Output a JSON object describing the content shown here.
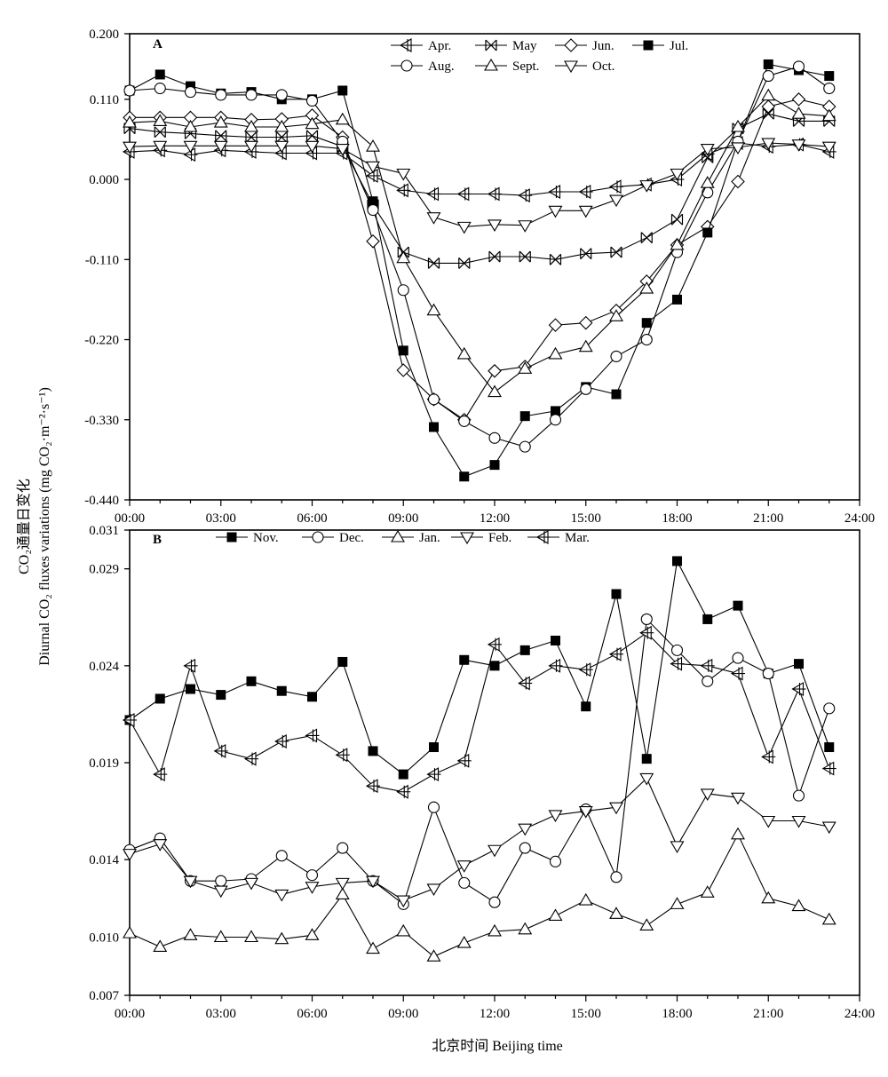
{
  "figure": {
    "ylabel_line1": "CO₂通量日变化",
    "ylabel_line2": "Diurnal CO₂ fluxes variations (mg CO₂·m⁻²·s⁻¹)",
    "xlabel": "北京时间 Beijing time"
  },
  "chart_data": [
    {
      "type": "line",
      "panel": "A",
      "x_unit": "hour",
      "x": [
        0,
        1,
        2,
        3,
        4,
        5,
        6,
        7,
        8,
        9,
        10,
        11,
        12,
        13,
        14,
        15,
        16,
        17,
        18,
        19,
        20,
        21,
        22,
        23
      ],
      "xlim": [
        0,
        24
      ],
      "xticks": [
        "00:00",
        "03:00",
        "06:00",
        "09:00",
        "12:00",
        "15:00",
        "18:00",
        "21:00",
        "24:00"
      ],
      "ylim": [
        -0.44,
        0.2
      ],
      "yticks": [
        "-0.440",
        "-0.330",
        "-0.220",
        "-0.110",
        "0.000",
        "0.110",
        "0.200"
      ],
      "ytick_values": [
        -0.44,
        -0.33,
        -0.22,
        -0.11,
        0,
        0.11,
        0.2
      ],
      "grid": false,
      "legend_position": "top-right",
      "series": [
        {
          "name": "Apr.",
          "marker": "tri-left-cross",
          "values": [
            0.038,
            0.04,
            0.034,
            0.04,
            0.038,
            0.036,
            0.036,
            0.036,
            0.005,
            -0.015,
            -0.02,
            -0.02,
            -0.02,
            -0.022,
            -0.017,
            -0.017,
            -0.01,
            -0.007,
            0.0,
            0.035,
            0.05,
            0.045,
            0.048,
            0.038
          ]
        },
        {
          "name": "May",
          "marker": "x-box",
          "values": [
            0.07,
            0.065,
            0.063,
            0.06,
            0.058,
            0.058,
            0.06,
            0.045,
            -0.035,
            -0.1,
            -0.115,
            -0.115,
            -0.106,
            -0.106,
            -0.11,
            -0.102,
            -0.1,
            -0.08,
            -0.055,
            0.03,
            0.07,
            0.09,
            0.08,
            0.08
          ]
        },
        {
          "name": "Jun.",
          "marker": "diamond",
          "values": [
            0.085,
            0.085,
            0.085,
            0.085,
            0.082,
            0.083,
            0.088,
            0.058,
            -0.085,
            -0.262,
            -0.302,
            -0.33,
            -0.263,
            -0.257,
            -0.2,
            -0.197,
            -0.18,
            -0.14,
            -0.09,
            -0.065,
            -0.003,
            0.1,
            0.11,
            0.1
          ]
        },
        {
          "name": "Jul.",
          "marker": "filled-square",
          "values": [
            0.122,
            0.144,
            0.128,
            0.118,
            0.12,
            0.11,
            0.11,
            0.122,
            -0.03,
            -0.235,
            -0.34,
            -0.408,
            -0.392,
            -0.325,
            -0.318,
            -0.285,
            -0.295,
            -0.197,
            -0.165,
            -0.073,
            0.052,
            0.158,
            0.15,
            0.142
          ]
        },
        {
          "name": "Aug.",
          "marker": "circle",
          "values": [
            0.122,
            0.125,
            0.12,
            0.116,
            0.116,
            0.116,
            0.108,
            0.052,
            -0.042,
            -0.152,
            -0.302,
            -0.332,
            -0.355,
            -0.367,
            -0.33,
            -0.288,
            -0.243,
            -0.22,
            -0.1,
            -0.018,
            0.052,
            0.142,
            0.155,
            0.125
          ]
        },
        {
          "name": "Sept.",
          "marker": "triangle-up",
          "values": [
            0.078,
            0.08,
            0.072,
            0.078,
            0.072,
            0.072,
            0.076,
            0.082,
            0.045,
            -0.108,
            -0.18,
            -0.24,
            -0.292,
            -0.26,
            -0.24,
            -0.23,
            -0.188,
            -0.15,
            -0.09,
            -0.005,
            0.072,
            0.115,
            0.09,
            0.087
          ]
        },
        {
          "name": "Oct.",
          "marker": "triangle-down",
          "values": [
            0.045,
            0.046,
            0.046,
            0.046,
            0.046,
            0.046,
            0.046,
            0.042,
            0.018,
            0.008,
            -0.052,
            -0.065,
            -0.062,
            -0.063,
            -0.043,
            -0.043,
            -0.028,
            -0.008,
            0.008,
            0.042,
            0.044,
            0.05,
            0.048,
            0.045
          ]
        }
      ]
    },
    {
      "type": "line",
      "panel": "B",
      "x_unit": "hour",
      "x": [
        0,
        1,
        2,
        3,
        4,
        5,
        6,
        7,
        8,
        9,
        10,
        11,
        12,
        13,
        14,
        15,
        16,
        17,
        18,
        19,
        20,
        21,
        22,
        23
      ],
      "xlim": [
        0,
        24
      ],
      "xticks": [
        "00:00",
        "03:00",
        "06:00",
        "09:00",
        "12:00",
        "15:00",
        "18:00",
        "21:00",
        "24:00"
      ],
      "ylim": [
        0.007,
        0.031
      ],
      "yticks": [
        "0.007",
        "0.010",
        "0.014",
        "0.019",
        "0.024",
        "0.029",
        "0.031"
      ],
      "ytick_values": [
        0.007,
        0.01,
        0.014,
        0.019,
        0.024,
        0.029,
        0.031
      ],
      "grid": false,
      "legend_position": "top",
      "series": [
        {
          "name": "Nov.",
          "marker": "filled-square",
          "values": [
            0.0212,
            0.0223,
            0.0228,
            0.0225,
            0.0232,
            0.0227,
            0.0224,
            0.0242,
            0.0196,
            0.0184,
            0.0198,
            0.0243,
            0.024,
            0.0248,
            0.0253,
            0.0219,
            0.0277,
            0.0192,
            0.0294,
            0.0264,
            0.0271,
            0.0236,
            0.0241,
            0.0198
          ]
        },
        {
          "name": "Dec.",
          "marker": "circle",
          "values": [
            0.0145,
            0.0151,
            0.0129,
            0.0129,
            0.013,
            0.0142,
            0.0132,
            0.0146,
            0.0129,
            0.0117,
            0.0167,
            0.0128,
            0.0118,
            0.0146,
            0.0139,
            0.0166,
            0.0131,
            0.0264,
            0.0248,
            0.0232,
            0.0244,
            0.0236,
            0.0173,
            0.0218
          ]
        },
        {
          "name": "Jan.",
          "marker": "triangle-up",
          "values": [
            0.0102,
            0.0095,
            0.0101,
            0.01,
            0.01,
            0.0099,
            0.0101,
            0.0122,
            0.0094,
            0.0103,
            0.009,
            0.0097,
            0.0103,
            0.0104,
            0.0111,
            0.0119,
            0.0112,
            0.0106,
            0.0117,
            0.0123,
            0.0153,
            0.012,
            0.0116,
            0.0109
          ]
        },
        {
          "name": "Feb.",
          "marker": "triangle-down",
          "values": [
            0.0143,
            0.0148,
            0.0129,
            0.0124,
            0.0128,
            0.0122,
            0.0126,
            0.0128,
            0.0129,
            0.0119,
            0.0125,
            0.0137,
            0.0145,
            0.0156,
            0.0163,
            0.0165,
            0.0167,
            0.0182,
            0.0147,
            0.0174,
            0.0172,
            0.016,
            0.016,
            0.0157
          ]
        },
        {
          "name": "Mar.",
          "marker": "tri-left-cross",
          "values": [
            0.0212,
            0.0184,
            0.024,
            0.0196,
            0.0192,
            0.0201,
            0.0204,
            0.0194,
            0.0178,
            0.0175,
            0.0184,
            0.0191,
            0.0251,
            0.0231,
            0.024,
            0.0238,
            0.0246,
            0.0257,
            0.0241,
            0.024,
            0.0236,
            0.0193,
            0.0228,
            0.0187
          ]
        }
      ]
    }
  ]
}
